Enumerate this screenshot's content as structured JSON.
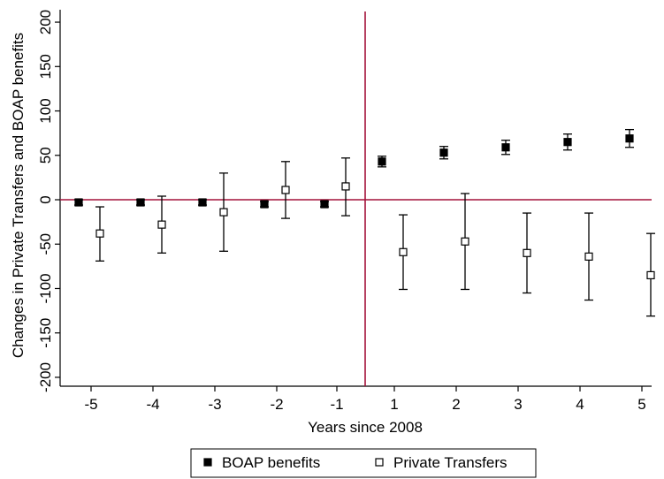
{
  "chart_data": {
    "type": "scatter",
    "title": "",
    "xlabel": "Years since 2008",
    "ylabel": "Changes in Private Transfers and BOAP benefits",
    "ylim": [
      -210,
      212
    ],
    "yticks": [
      -200,
      -150,
      -100,
      -50,
      0,
      50,
      100,
      150,
      200
    ],
    "categories": [
      "-5",
      "-4",
      "-3",
      "-2",
      "-1",
      "1",
      "2",
      "3",
      "4",
      "5"
    ],
    "grid": false,
    "reference_lines": {
      "horizontal_at": 0,
      "vertical_between": [
        "-1",
        "1"
      ],
      "color": "#a3123a"
    },
    "legend_position": "bottom",
    "series": [
      {
        "name": "BOAP benefits",
        "marker": "filled-square",
        "color": "#000000",
        "points": [
          {
            "x": "-5",
            "y": -3,
            "ci": [
              -6,
              0
            ]
          },
          {
            "x": "-4",
            "y": -3,
            "ci": [
              -6,
              0
            ]
          },
          {
            "x": "-3",
            "y": -3,
            "ci": [
              -6,
              0
            ]
          },
          {
            "x": "-2",
            "y": -5,
            "ci": [
              -8,
              -2
            ]
          },
          {
            "x": "-1",
            "y": -5,
            "ci": [
              -8,
              -2
            ]
          },
          {
            "x": "1",
            "y": 43,
            "ci": [
              37,
              49
            ]
          },
          {
            "x": "2",
            "y": 53,
            "ci": [
              46,
              60
            ]
          },
          {
            "x": "3",
            "y": 59,
            "ci": [
              51,
              67
            ]
          },
          {
            "x": "4",
            "y": 65,
            "ci": [
              56,
              74
            ]
          },
          {
            "x": "5",
            "y": 69,
            "ci": [
              59,
              79
            ]
          }
        ]
      },
      {
        "name": "Private Transfers",
        "marker": "hollow-square",
        "color": "#000000",
        "points": [
          {
            "x": "-5",
            "y": -38,
            "ci": [
              -69,
              -8
            ]
          },
          {
            "x": "-4",
            "y": -28,
            "ci": [
              -60,
              4
            ]
          },
          {
            "x": "-3",
            "y": -14,
            "ci": [
              -58,
              30
            ]
          },
          {
            "x": "-2",
            "y": 11,
            "ci": [
              -21,
              43
            ]
          },
          {
            "x": "-1",
            "y": 15,
            "ci": [
              -18,
              47
            ]
          },
          {
            "x": "1",
            "y": -59,
            "ci": [
              -101,
              -17
            ]
          },
          {
            "x": "2",
            "y": -47,
            "ci": [
              -101,
              7
            ]
          },
          {
            "x": "3",
            "y": -60,
            "ci": [
              -105,
              -15
            ]
          },
          {
            "x": "4",
            "y": -64,
            "ci": [
              -113,
              -15
            ]
          },
          {
            "x": "5",
            "y": -85,
            "ci": [
              -131,
              -38
            ]
          }
        ]
      }
    ]
  }
}
